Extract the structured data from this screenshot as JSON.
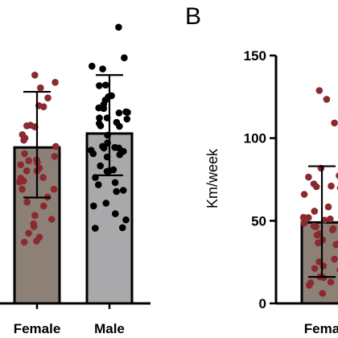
{
  "panel_letter": "B",
  "chart_data": [
    {
      "type": "bar",
      "categories": [
        "Female",
        "Male"
      ],
      "bars": [
        {
          "name": "Female",
          "mean": 28,
          "sd_low": 19,
          "sd_high": 38,
          "color": "#8c8077",
          "dot_color": "#8b2a2e"
        },
        {
          "name": "Male",
          "mean": 30.5,
          "sd_low": 23,
          "sd_high": 41,
          "color": "#a9a9ab",
          "dot_color": "#000000"
        }
      ],
      "points": {
        "Female": [
          25.8,
          11.9,
          20.5,
          18.2,
          31.7,
          25.3,
          22.5,
          15.1,
          38.7,
          14.3,
          25.6,
          36.9,
          22.6,
          24.9,
          23.8,
          31.9,
          17.5,
          29.3,
          24.3,
          11.2,
          26.9,
          21.8,
          20.5,
          39.7,
          30.3,
          41.0,
          26.4,
          29.7,
          13.8,
          24.2,
          35.3,
          12.6,
          11.0,
          28.2,
          15.8,
          23.8,
          35.5,
          32.0,
          22.0,
          19.1
        ],
        "Male": [
          35.0,
          35.7,
          26.9,
          34.4,
          33.3,
          44.1,
          37.1,
          32.3,
          24.0,
          39.2,
          31.8,
          16.1,
          22.6,
          35.1,
          28.8,
          17.5,
          42.6,
          18.0,
          20.1,
          21.7,
          33.1,
          42.1,
          23.7,
          23.8,
          33.3,
          13.6,
          30.2,
          26.3,
          24.7,
          39.1,
          27.9,
          13.5,
          31.9,
          26.7,
          20.3,
          34.3,
          15.0,
          27.3,
          34.2,
          28.0,
          37.3,
          27.5,
          28.2,
          27.9,
          21.3,
          36.5,
          32.5,
          49.6
        ]
      },
      "ylim": [
        0,
        50
      ]
    },
    {
      "type": "bar",
      "categories": [
        "Fema"
      ],
      "ylabel": "Km/week",
      "yticks": [
        0,
        50,
        100,
        150
      ],
      "ylim": [
        0,
        150
      ],
      "bars": [
        {
          "name": "Female",
          "mean": 49,
          "sd_low": 16,
          "sd_high": 83,
          "color": "#8c8077",
          "dot_color": "#8b2a2e"
        }
      ],
      "points": {
        "Female": [
          16,
          123.5,
          12.4,
          36.6,
          76.4,
          51.6,
          44.5,
          50.4,
          35.6,
          37.1,
          72.3,
          51.9,
          25.2,
          12.9,
          46.8,
          15.6,
          55.8,
          51.1,
          71.0,
          42.1,
          26.8,
          128.8,
          22.6,
          66.0,
          48.6,
          52.1,
          45.2,
          69.9,
          21.2,
          81.8,
          58.4,
          109.2,
          38.4,
          6.1,
          20.1,
          46.4,
          77.3,
          11.0,
          70.6,
          41.3
        ]
      }
    }
  ]
}
